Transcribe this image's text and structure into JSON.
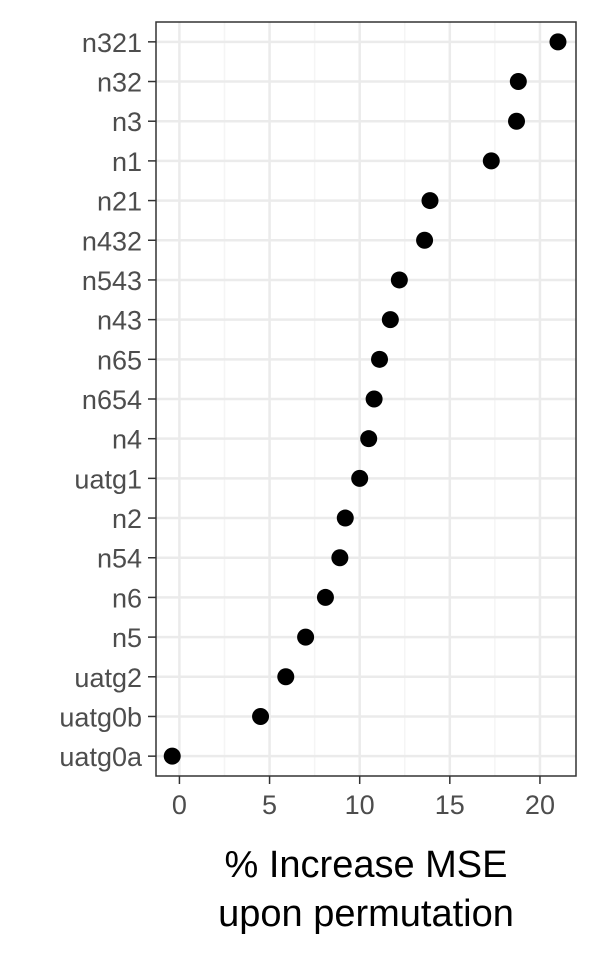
{
  "chart_data": {
    "type": "scatter",
    "categories": [
      "n321",
      "n32",
      "n3",
      "n1",
      "n21",
      "n432",
      "n543",
      "n43",
      "n65",
      "n654",
      "n4",
      "uatg1",
      "n2",
      "n54",
      "n6",
      "n5",
      "uatg2",
      "uatg0b",
      "uatg0a"
    ],
    "values": [
      21.0,
      18.8,
      18.7,
      17.3,
      13.9,
      13.6,
      12.2,
      11.7,
      11.1,
      10.8,
      10.5,
      10.0,
      9.2,
      8.9,
      8.1,
      7.0,
      5.9,
      4.5,
      -0.4
    ],
    "xlabel_line1": "% Increase MSE",
    "xlabel_line2": "upon permutation",
    "xlim": [
      -1.3,
      22.0
    ],
    "xticks": [
      0,
      5,
      10,
      15,
      20
    ],
    "grid": true,
    "colors": {
      "point": "#000000",
      "grid_major": "#ebebeb",
      "grid_minor": "#f5f5f5",
      "panel_border": "#333333",
      "tick_text": "#4d4d4d"
    }
  }
}
